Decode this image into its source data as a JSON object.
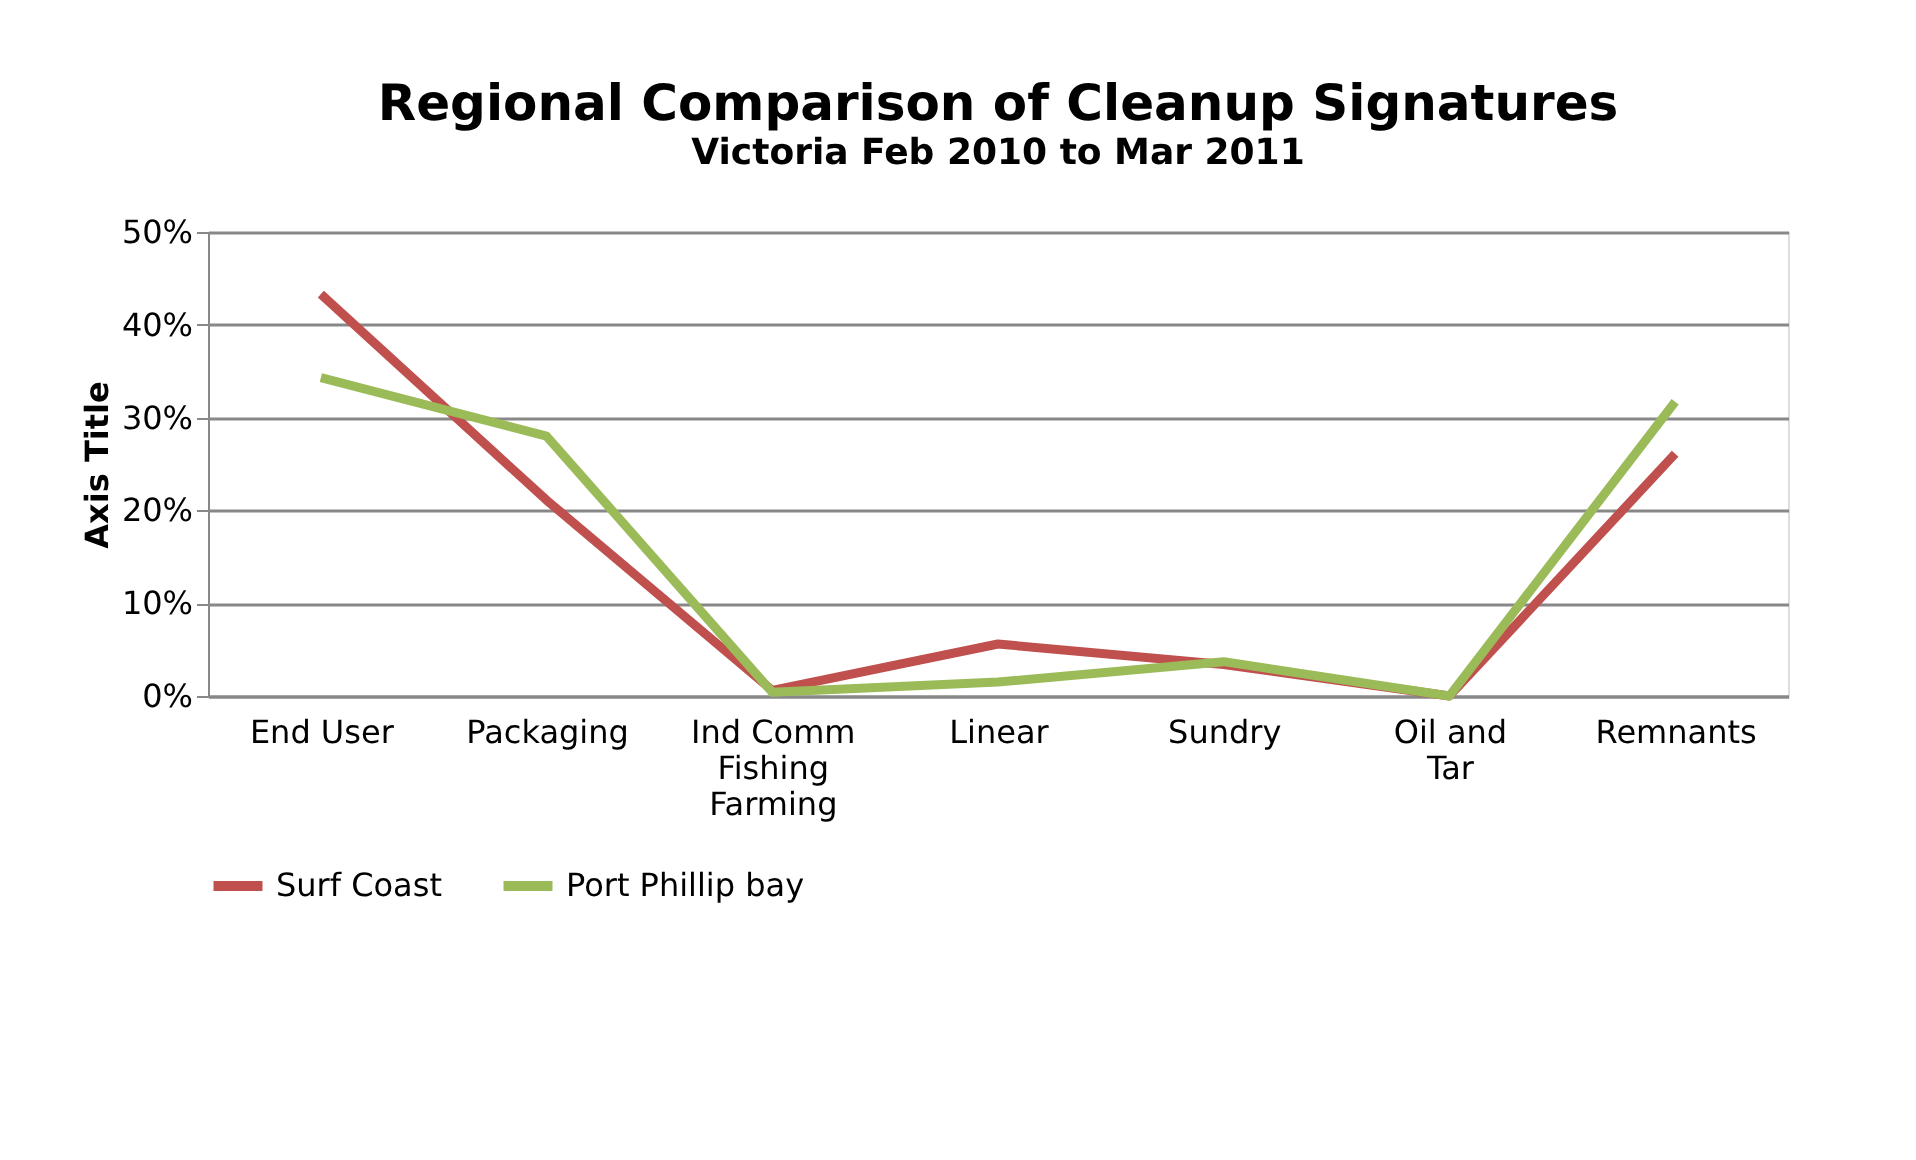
{
  "chart_data": {
    "type": "line",
    "title": "Regional Comparison of Cleanup Signatures",
    "subtitle": "Victoria Feb 2010 to Mar 2011",
    "ylabel": "Axis Title",
    "categories": [
      "End User",
      "Packaging",
      "Ind Comm Fishing Farming",
      "Linear",
      "Sundry",
      "Oil and Tar",
      "Remnants"
    ],
    "series": [
      {
        "name": "Surf Coast",
        "color": "#c0504d",
        "values": [
          43.3,
          21.1,
          0.6,
          5.6,
          3.4,
          0,
          26.1
        ]
      },
      {
        "name": "Port Phillip bay",
        "color": "#9bbb59",
        "values": [
          34.3,
          28.0,
          0.4,
          1.5,
          3.7,
          0,
          31.7
        ]
      }
    ],
    "ylim": [
      0,
      50
    ],
    "yticks": [
      {
        "value": 0,
        "label": "0%"
      },
      {
        "value": 10,
        "label": "10%"
      },
      {
        "value": 20,
        "label": "20%"
      },
      {
        "value": 30,
        "label": "30%"
      },
      {
        "value": 40,
        "label": "40%"
      },
      {
        "value": 50,
        "label": "50%"
      }
    ],
    "grid": "y",
    "legend": "bottom",
    "marker": "none",
    "line_style": "solid"
  }
}
